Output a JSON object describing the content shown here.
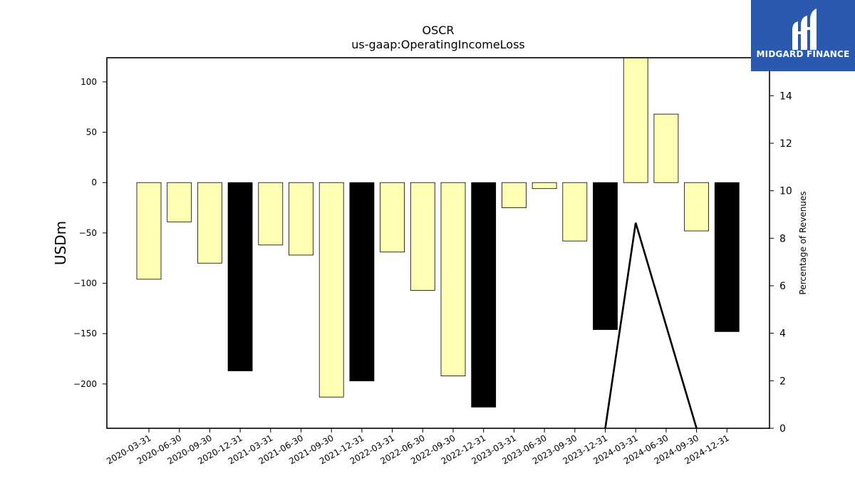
{
  "logo": {
    "text": "MIDGARD FINANCE",
    "background": "#2b59ad"
  },
  "chart_data": {
    "type": "bar",
    "title": "OSCR",
    "subtitle": "us-gaap:OperatingIncomeLoss",
    "ylabel": "USDm",
    "y2label": "Percentage of Revenues",
    "ylim": [
      -244,
      124
    ],
    "y2lim": [
      0,
      15.6
    ],
    "yticks": [
      100,
      50,
      0,
      -50,
      -100,
      -150,
      -200
    ],
    "y2ticks": [
      0,
      2,
      4,
      6,
      8,
      10,
      12,
      14
    ],
    "categories": [
      "2020-03-31",
      "2020-06-30",
      "2020-09-30",
      "2020-12-31",
      "2021-03-31",
      "2021-06-30",
      "2021-09-30",
      "2021-12-31",
      "2022-03-31",
      "2022-06-30",
      "2022-09-30",
      "2022-12-31",
      "2023-03-31",
      "2023-06-30",
      "2023-09-30",
      "2023-12-31",
      "2024-03-31",
      "2024-06-30",
      "2024-09-30",
      "2024-12-31"
    ],
    "values": [
      -96,
      -39,
      -80,
      -187,
      -62,
      -72,
      -213,
      -197,
      -69,
      -107,
      -192,
      -223,
      -25,
      -6,
      -58,
      -146,
      124,
      68,
      -48,
      -148
    ],
    "fiscal_year_end": [
      false,
      false,
      false,
      true,
      false,
      false,
      false,
      true,
      false,
      false,
      false,
      true,
      false,
      false,
      false,
      true,
      false,
      false,
      false,
      true
    ],
    "line_series": {
      "values": [
        null,
        null,
        null,
        null,
        null,
        null,
        null,
        null,
        null,
        null,
        null,
        null,
        null,
        null,
        null,
        0,
        8.65,
        null,
        0,
        null
      ]
    },
    "colors": {
      "quarter": "#ffffb3",
      "fiscal_year": "#000000",
      "line": "#000000"
    },
    "grid": false
  }
}
